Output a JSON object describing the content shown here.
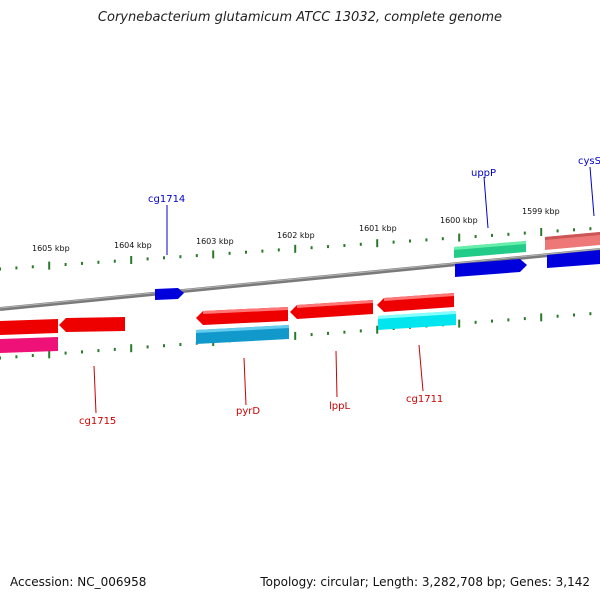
{
  "title": "Corynebacterium glutamicum ATCC 13032, complete genome",
  "footer": {
    "accession": "Accession: NC_006958",
    "summary": "Topology: circular; Length: 3,282,708 bp; Genes: 3,142"
  },
  "scale_labels": [
    "1605 kbp",
    "1604 kbp",
    "1603 kbp",
    "1602 kbp",
    "1601 kbp",
    "1600 kbp",
    "1599 kbp"
  ],
  "gene_labels": [
    {
      "name": "cg1714",
      "strand": "forward",
      "color": "#0000cc"
    },
    {
      "name": "uppP",
      "strand": "forward",
      "color": "#0000cc"
    },
    {
      "name": "cysS",
      "strand": "forward",
      "color": "#0000cc"
    },
    {
      "name": "cg1715",
      "strand": "reverse",
      "color": "#cc0000"
    },
    {
      "name": "pyrD",
      "strand": "reverse",
      "color": "#cc0000"
    },
    {
      "name": "lppL",
      "strand": "reverse",
      "color": "#cc0000"
    },
    {
      "name": "cg1711",
      "strand": "reverse",
      "color": "#cc0000"
    }
  ],
  "colors": {
    "backbone": "#888888",
    "tick": "#2a7a2a",
    "forward_gene": "#0000dd",
    "reverse_gene": "#ee0000",
    "forward_label": "#0000cc",
    "reverse_label": "#cc0000"
  }
}
